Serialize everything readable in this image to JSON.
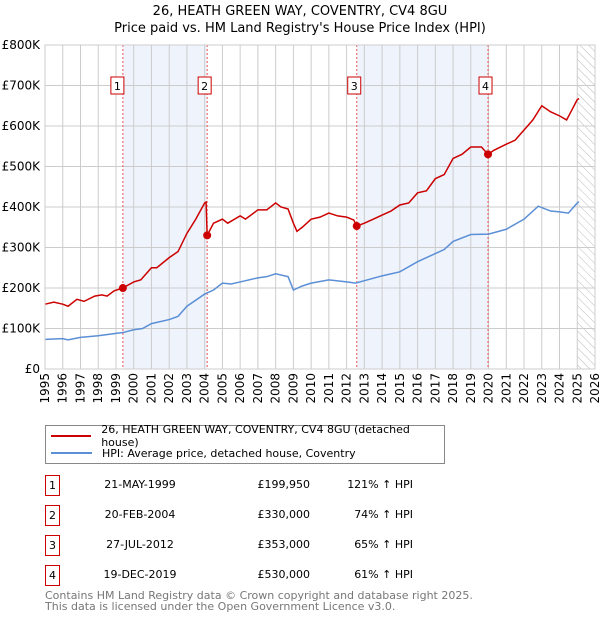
{
  "title": "26, HEATH GREEN WAY, COVENTRY, CV4 8GU",
  "subtitle": "Price paid vs. HM Land Registry's House Price Index (HPI)",
  "colors": {
    "property": "#cc0000",
    "hpi": "#5b8fd6",
    "shade": "#eef3fc"
  },
  "chart_data": {
    "type": "line",
    "title": "26, HEATH GREEN WAY, COVENTRY, CV4 8GU",
    "subtitle": "Price paid vs. HM Land Registry's House Price Index (HPI)",
    "xlim": [
      1995,
      2026
    ],
    "ylim": [
      0,
      800000
    ],
    "y_ticks": [
      {
        "v": 0,
        "label": "£0"
      },
      {
        "v": 100000,
        "label": "£100K"
      },
      {
        "v": 200000,
        "label": "£200K"
      },
      {
        "v": 300000,
        "label": "£300K"
      },
      {
        "v": 400000,
        "label": "£400K"
      },
      {
        "v": 500000,
        "label": "£500K"
      },
      {
        "v": 600000,
        "label": "£600K"
      },
      {
        "v": 700000,
        "label": "£700K"
      },
      {
        "v": 800000,
        "label": "£800K"
      }
    ],
    "x_ticks": [
      "1995",
      "1996",
      "1997",
      "1998",
      "1999",
      "2000",
      "2001",
      "2002",
      "2003",
      "2004",
      "2005",
      "2006",
      "2007",
      "2008",
      "2009",
      "2010",
      "2011",
      "2012",
      "2013",
      "2014",
      "2015",
      "2016",
      "2017",
      "2018",
      "2019",
      "2020",
      "2021",
      "2022",
      "2023",
      "2024",
      "2025",
      "2026"
    ],
    "grid": true,
    "legend_placement": "below",
    "series": [
      {
        "name": "26, HEATH GREEN WAY, COVENTRY, CV4 8GU (detached house)",
        "points": [
          [
            1995,
            160
          ],
          [
            1995.5,
            165
          ],
          [
            1996,
            160
          ],
          [
            1996.3,
            155
          ],
          [
            1996.8,
            172
          ],
          [
            1997.2,
            167
          ],
          [
            1997.8,
            180
          ],
          [
            1998.2,
            183
          ],
          [
            1998.5,
            180
          ],
          [
            1998.9,
            193
          ],
          [
            1999.39,
            200
          ],
          [
            2000,
            215
          ],
          [
            2000.4,
            220
          ],
          [
            2001,
            250
          ],
          [
            2001.3,
            250
          ],
          [
            2002,
            275
          ],
          [
            2002.5,
            290
          ],
          [
            2003,
            335
          ],
          [
            2003.5,
            370
          ],
          [
            2004,
            410
          ],
          [
            2004.08,
            412
          ],
          [
            2004.14,
            330
          ],
          [
            2004.5,
            360
          ],
          [
            2005,
            370
          ],
          [
            2005.3,
            360
          ],
          [
            2006,
            378
          ],
          [
            2006.3,
            370
          ],
          [
            2007,
            393
          ],
          [
            2007.5,
            393
          ],
          [
            2008,
            410
          ],
          [
            2008.3,
            400
          ],
          [
            2008.7,
            395
          ],
          [
            2009,
            360
          ],
          [
            2009.2,
            340
          ],
          [
            2009.5,
            350
          ],
          [
            2010,
            370
          ],
          [
            2010.5,
            375
          ],
          [
            2011,
            385
          ],
          [
            2011.5,
            378
          ],
          [
            2012,
            375
          ],
          [
            2012.4,
            368
          ],
          [
            2012.57,
            353
          ],
          [
            2013,
            360
          ],
          [
            2013.5,
            370
          ],
          [
            2014,
            380
          ],
          [
            2014.5,
            390
          ],
          [
            2015,
            405
          ],
          [
            2015.5,
            410
          ],
          [
            2016,
            435
          ],
          [
            2016.5,
            440
          ],
          [
            2017,
            470
          ],
          [
            2017.5,
            480
          ],
          [
            2018,
            520
          ],
          [
            2018.5,
            530
          ],
          [
            2019,
            548
          ],
          [
            2019.6,
            548
          ],
          [
            2019.97,
            530
          ],
          [
            2020.3,
            540
          ],
          [
            2021,
            555
          ],
          [
            2021.5,
            565
          ],
          [
            2022,
            590
          ],
          [
            2022.5,
            615
          ],
          [
            2023,
            650
          ],
          [
            2023.5,
            635
          ],
          [
            2024,
            625
          ],
          [
            2024.4,
            615
          ],
          [
            2024.7,
            640
          ],
          [
            2025,
            665
          ],
          [
            2025.1,
            668
          ]
        ]
      },
      {
        "name": "HPI: Average price, detached house, Coventry",
        "points": [
          [
            1995,
            73
          ],
          [
            1996,
            75
          ],
          [
            1996.3,
            72
          ],
          [
            1997,
            78
          ],
          [
            1998,
            82
          ],
          [
            1999,
            88
          ],
          [
            1999.4,
            90
          ],
          [
            2000,
            97
          ],
          [
            2000.5,
            100
          ],
          [
            2001,
            112
          ],
          [
            2002,
            122
          ],
          [
            2002.5,
            130
          ],
          [
            2003,
            155
          ],
          [
            2004,
            185
          ],
          [
            2004.5,
            195
          ],
          [
            2005,
            212
          ],
          [
            2005.5,
            210
          ],
          [
            2006,
            215
          ],
          [
            2007,
            225
          ],
          [
            2007.5,
            228
          ],
          [
            2008,
            235
          ],
          [
            2008.7,
            228
          ],
          [
            2009,
            195
          ],
          [
            2009.5,
            205
          ],
          [
            2010,
            212
          ],
          [
            2011,
            220
          ],
          [
            2012,
            215
          ],
          [
            2012.5,
            212
          ],
          [
            2013,
            218
          ],
          [
            2014,
            230
          ],
          [
            2015,
            240
          ],
          [
            2016,
            265
          ],
          [
            2017,
            285
          ],
          [
            2017.5,
            295
          ],
          [
            2018,
            315
          ],
          [
            2019,
            332
          ],
          [
            2020,
            333
          ],
          [
            2021,
            345
          ],
          [
            2022,
            370
          ],
          [
            2022.8,
            402
          ],
          [
            2023.5,
            390
          ],
          [
            2024,
            388
          ],
          [
            2024.5,
            385
          ],
          [
            2025,
            410
          ],
          [
            2025.1,
            413
          ]
        ]
      }
    ],
    "y_unit_points": "thousands GBP",
    "sales": [
      {
        "n": "1",
        "date": "21-MAY-1999",
        "x": 1999.39,
        "price": "£199,950",
        "value": 199950,
        "hpi": "121% ↑ HPI"
      },
      {
        "n": "2",
        "date": "20-FEB-2004",
        "x": 2004.14,
        "price": "£330,000",
        "value": 330000,
        "hpi": "74% ↑ HPI"
      },
      {
        "n": "3",
        "date": "27-JUL-2012",
        "x": 2012.57,
        "price": "£353,000",
        "value": 353000,
        "hpi": "65% ↑ HPI"
      },
      {
        "n": "4",
        "date": "19-DEC-2019",
        "x": 2019.97,
        "price": "£530,000",
        "value": 530000,
        "hpi": "61% ↑ HPI"
      }
    ],
    "shaded_ranges": [
      [
        1999.39,
        2004.14
      ],
      [
        2012.57,
        2019.97
      ]
    ],
    "forecast_hatch_from": 2025.0
  },
  "footer": {
    "line1": "Contains HM Land Registry data © Crown copyright and database right 2025.",
    "line2": "This data is licensed under the Open Government Licence v3.0."
  }
}
